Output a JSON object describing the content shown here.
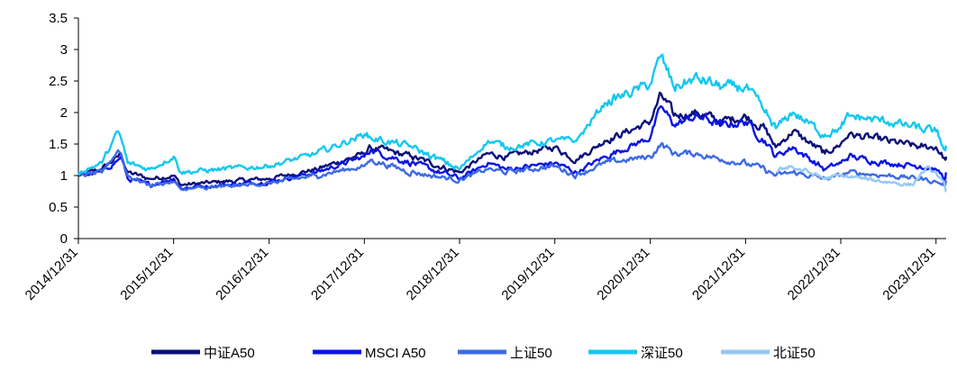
{
  "chart_data": {
    "type": "line",
    "title": "",
    "xlabel": "",
    "ylabel": "",
    "ylim": [
      0,
      3.5
    ],
    "yticks": [
      "0",
      "0.5",
      "1",
      "1.5",
      "2",
      "2.5",
      "3",
      "3.5"
    ],
    "xlim": [
      "2014/12/31",
      "2024/02/08"
    ],
    "xticks": [
      "2014/12/31",
      "2015/12/31",
      "2016/12/31",
      "2017/12/31",
      "2018/12/31",
      "2019/12/31",
      "2020/12/31",
      "2021/12/31",
      "2022/12/31",
      "2023/12/31"
    ],
    "grid": false,
    "legend_position": "bottom",
    "series": [
      {
        "name": "中证A50",
        "color": "#0a0f78",
        "x": [
          "2014/12/31",
          "2015/03/31",
          "2015/06/01",
          "2015/06/12",
          "2015/07/08",
          "2015/09/30",
          "2015/12/31",
          "2016/01/28",
          "2016/06/30",
          "2016/12/31",
          "2017/06/30",
          "2017/12/31",
          "2018/01/24",
          "2018/06/30",
          "2018/12/31",
          "2019/04/19",
          "2019/06/30",
          "2019/12/31",
          "2020/03/23",
          "2020/07/09",
          "2020/12/31",
          "2021/02/10",
          "2021/03/31",
          "2021/06/30",
          "2021/09/30",
          "2021/12/31",
          "2022/03/15",
          "2022/04/26",
          "2022/06/30",
          "2022/10/31",
          "2022/12/31",
          "2023/01/31",
          "2023/06/30",
          "2023/10/31",
          "2023/12/31",
          "2024/02/05",
          "2024/02/08"
        ],
        "values": [
          1.0,
          1.1,
          1.3,
          1.35,
          1.05,
          0.95,
          1.0,
          0.85,
          0.9,
          0.95,
          1.1,
          1.35,
          1.45,
          1.3,
          1.05,
          1.35,
          1.3,
          1.45,
          1.25,
          1.55,
          1.85,
          2.3,
          1.95,
          2.0,
          1.85,
          1.95,
          1.75,
          1.45,
          1.7,
          1.35,
          1.5,
          1.65,
          1.55,
          1.45,
          1.45,
          1.25,
          1.3
        ]
      },
      {
        "name": "MSCI A50",
        "color": "#0a14e6",
        "x": [
          "2014/12/31",
          "2015/03/31",
          "2015/06/01",
          "2015/06/12",
          "2015/07/08",
          "2015/09/30",
          "2015/12/31",
          "2016/01/28",
          "2016/06/30",
          "2016/12/31",
          "2017/06/30",
          "2017/12/31",
          "2018/01/24",
          "2018/06/30",
          "2018/12/31",
          "2019/04/19",
          "2019/06/30",
          "2019/12/31",
          "2020/03/23",
          "2020/07/09",
          "2020/12/31",
          "2021/02/10",
          "2021/03/31",
          "2021/06/30",
          "2021/09/30",
          "2021/12/31",
          "2022/03/15",
          "2022/04/26",
          "2022/06/30",
          "2022/10/31",
          "2022/12/31",
          "2023/01/31",
          "2023/06/30",
          "2023/10/31",
          "2023/12/31",
          "2024/02/05",
          "2024/02/08"
        ],
        "values": [
          1.0,
          1.05,
          1.25,
          1.3,
          0.95,
          0.85,
          0.95,
          0.8,
          0.85,
          0.9,
          1.05,
          1.3,
          1.4,
          1.2,
          0.95,
          1.2,
          1.1,
          1.2,
          1.05,
          1.3,
          1.6,
          2.1,
          1.8,
          1.95,
          1.8,
          1.85,
          1.55,
          1.3,
          1.45,
          1.1,
          1.2,
          1.3,
          1.2,
          1.15,
          1.1,
          0.95,
          1.05
        ]
      },
      {
        "name": "上证50",
        "color": "#3c6ae6",
        "x": [
          "2014/12/31",
          "2015/03/31",
          "2015/06/01",
          "2015/06/12",
          "2015/07/08",
          "2015/09/30",
          "2015/12/31",
          "2016/01/28",
          "2016/06/30",
          "2016/12/31",
          "2017/06/30",
          "2017/12/31",
          "2018/01/24",
          "2018/06/30",
          "2018/12/31",
          "2019/04/19",
          "2019/06/30",
          "2019/12/31",
          "2020/03/23",
          "2020/07/09",
          "2020/12/31",
          "2021/02/10",
          "2021/03/31",
          "2021/06/30",
          "2021/09/30",
          "2021/12/31",
          "2022/03/15",
          "2022/04/26",
          "2022/06/30",
          "2022/10/31",
          "2022/12/31",
          "2023/01/31",
          "2023/06/30",
          "2023/10/31",
          "2023/12/31",
          "2024/02/05",
          "2024/02/08"
        ],
        "values": [
          1.0,
          1.05,
          1.4,
          1.35,
          1.0,
          0.85,
          0.9,
          0.78,
          0.82,
          0.88,
          1.0,
          1.15,
          1.25,
          1.05,
          0.93,
          1.1,
          1.05,
          1.15,
          1.0,
          1.2,
          1.3,
          1.5,
          1.35,
          1.35,
          1.25,
          1.2,
          1.1,
          1.0,
          1.05,
          0.95,
          1.0,
          1.05,
          1.0,
          0.95,
          0.9,
          0.85,
          0.9
        ]
      },
      {
        "name": "深证50",
        "color": "#14c8f0",
        "x": [
          "2014/12/31",
          "2015/03/31",
          "2015/06/01",
          "2015/06/12",
          "2015/07/08",
          "2015/09/30",
          "2015/12/31",
          "2016/01/28",
          "2016/06/30",
          "2016/12/31",
          "2017/06/30",
          "2017/12/31",
          "2018/01/24",
          "2018/06/30",
          "2018/12/31",
          "2019/04/19",
          "2019/06/30",
          "2019/12/31",
          "2020/03/23",
          "2020/07/09",
          "2020/12/31",
          "2021/02/10",
          "2021/03/31",
          "2021/06/30",
          "2021/09/30",
          "2021/12/31",
          "2022/03/15",
          "2022/04/26",
          "2022/06/30",
          "2022/10/31",
          "2022/12/31",
          "2023/01/31",
          "2023/06/30",
          "2023/10/31",
          "2023/12/31",
          "2024/02/05",
          "2024/02/08"
        ],
        "values": [
          1.05,
          1.2,
          1.7,
          1.6,
          1.2,
          1.1,
          1.3,
          1.05,
          1.1,
          1.15,
          1.35,
          1.65,
          1.6,
          1.45,
          1.1,
          1.55,
          1.45,
          1.55,
          1.55,
          2.15,
          2.45,
          2.9,
          2.4,
          2.55,
          2.4,
          2.4,
          2.0,
          1.75,
          2.0,
          1.65,
          1.75,
          1.95,
          1.85,
          1.75,
          1.7,
          1.4,
          1.45
        ]
      },
      {
        "name": "北证50",
        "color": "#96c8f5",
        "x": [
          "2022/04/29",
          "2022/06/15",
          "2022/08/31",
          "2022/10/31",
          "2022/12/31",
          "2023/03/31",
          "2023/06/30",
          "2023/09/30",
          "2023/11/20",
          "2023/12/31",
          "2024/02/05",
          "2024/02/08"
        ],
        "values": [
          1.05,
          1.15,
          1.05,
          0.95,
          1.0,
          0.95,
          0.9,
          0.85,
          1.1,
          1.05,
          0.8,
          0.75
        ]
      }
    ]
  }
}
